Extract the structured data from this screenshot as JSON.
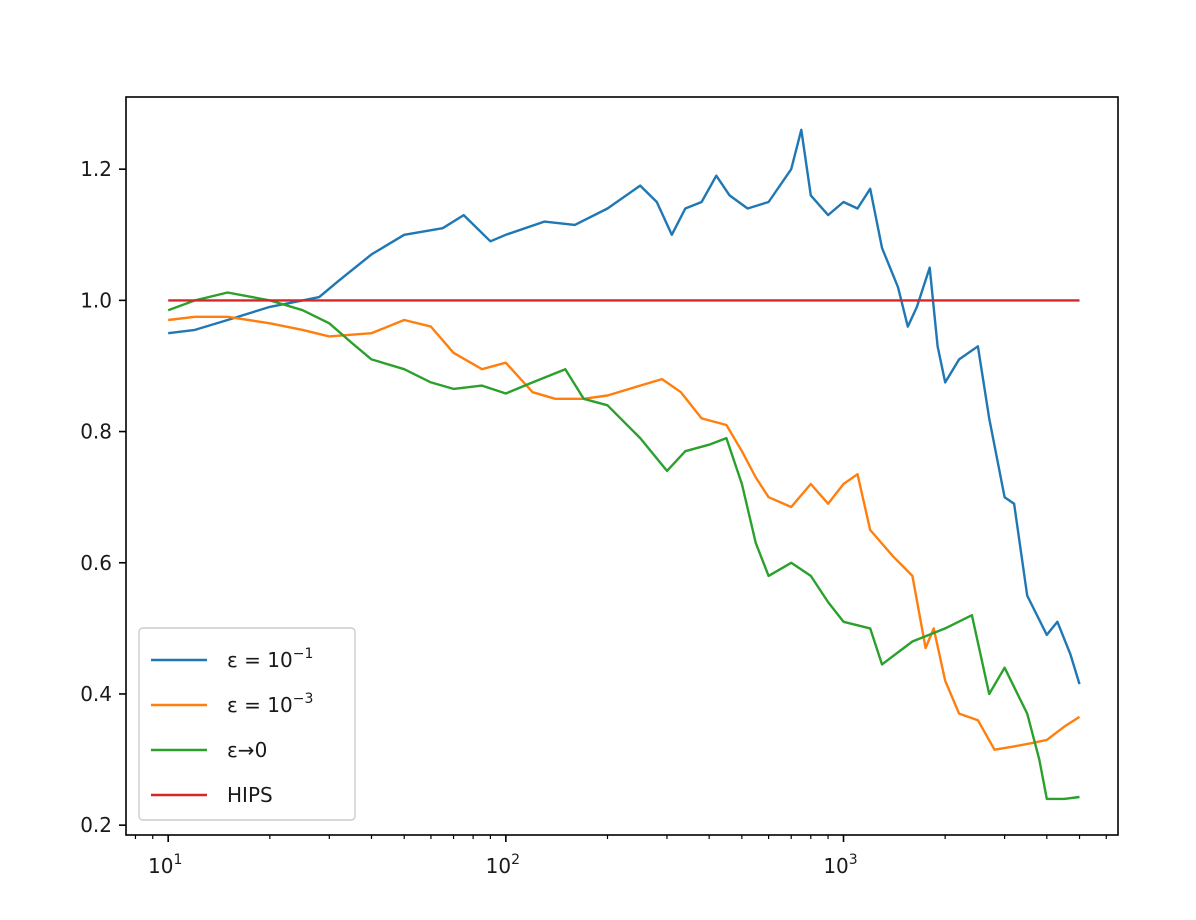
{
  "chart_data": {
    "type": "line",
    "title": "",
    "xlabel": "",
    "ylabel": "",
    "xscale": "log",
    "xlim": [
      7.5,
      6500
    ],
    "ylim": [
      0.185,
      1.31
    ],
    "xticks": [
      {
        "value": 10,
        "label": "10",
        "exp": "1"
      },
      {
        "value": 100,
        "label": "10",
        "exp": "2"
      },
      {
        "value": 1000,
        "label": "10",
        "exp": "3"
      }
    ],
    "yticks": [
      {
        "value": 0.2,
        "label": "0.2"
      },
      {
        "value": 0.4,
        "label": "0.4"
      },
      {
        "value": 0.6,
        "label": "0.6"
      },
      {
        "value": 0.8,
        "label": "0.8"
      },
      {
        "value": 1.0,
        "label": "1.0"
      },
      {
        "value": 1.2,
        "label": "1.2"
      }
    ],
    "grid": false,
    "legend_position": "lower left",
    "series": [
      {
        "name": "ε = 10⁻¹",
        "legend": {
          "base": "ε = 10",
          "sup": "−1"
        },
        "color": "#1f77b4",
        "points": [
          [
            10,
            0.95
          ],
          [
            12,
            0.955
          ],
          [
            15,
            0.97
          ],
          [
            20,
            0.99
          ],
          [
            25,
            1.0
          ],
          [
            28,
            1.005
          ],
          [
            32,
            1.03
          ],
          [
            40,
            1.07
          ],
          [
            50,
            1.1
          ],
          [
            65,
            1.11
          ],
          [
            75,
            1.13
          ],
          [
            90,
            1.09
          ],
          [
            100,
            1.1
          ],
          [
            130,
            1.12
          ],
          [
            160,
            1.115
          ],
          [
            200,
            1.14
          ],
          [
            250,
            1.175
          ],
          [
            280,
            1.15
          ],
          [
            310,
            1.1
          ],
          [
            340,
            1.14
          ],
          [
            380,
            1.15
          ],
          [
            420,
            1.19
          ],
          [
            460,
            1.16
          ],
          [
            520,
            1.14
          ],
          [
            600,
            1.15
          ],
          [
            700,
            1.2
          ],
          [
            750,
            1.26
          ],
          [
            800,
            1.16
          ],
          [
            900,
            1.13
          ],
          [
            1000,
            1.15
          ],
          [
            1100,
            1.14
          ],
          [
            1200,
            1.17
          ],
          [
            1300,
            1.08
          ],
          [
            1450,
            1.02
          ],
          [
            1550,
            0.96
          ],
          [
            1650,
            0.99
          ],
          [
            1800,
            1.05
          ],
          [
            1900,
            0.93
          ],
          [
            2000,
            0.875
          ],
          [
            2200,
            0.91
          ],
          [
            2500,
            0.93
          ],
          [
            2700,
            0.82
          ],
          [
            3000,
            0.7
          ],
          [
            3200,
            0.69
          ],
          [
            3500,
            0.55
          ],
          [
            4000,
            0.49
          ],
          [
            4300,
            0.51
          ],
          [
            4700,
            0.46
          ],
          [
            5000,
            0.415
          ]
        ]
      },
      {
        "name": "ε = 10⁻³",
        "legend": {
          "base": "ε = 10",
          "sup": "−3"
        },
        "color": "#ff7f0e",
        "points": [
          [
            10,
            0.97
          ],
          [
            12,
            0.975
          ],
          [
            15,
            0.975
          ],
          [
            20,
            0.965
          ],
          [
            25,
            0.955
          ],
          [
            30,
            0.945
          ],
          [
            40,
            0.95
          ],
          [
            50,
            0.97
          ],
          [
            60,
            0.96
          ],
          [
            70,
            0.92
          ],
          [
            85,
            0.895
          ],
          [
            100,
            0.905
          ],
          [
            120,
            0.86
          ],
          [
            140,
            0.85
          ],
          [
            170,
            0.85
          ],
          [
            200,
            0.855
          ],
          [
            250,
            0.87
          ],
          [
            290,
            0.88
          ],
          [
            330,
            0.86
          ],
          [
            380,
            0.82
          ],
          [
            450,
            0.81
          ],
          [
            500,
            0.77
          ],
          [
            550,
            0.73
          ],
          [
            600,
            0.7
          ],
          [
            700,
            0.685
          ],
          [
            800,
            0.72
          ],
          [
            900,
            0.69
          ],
          [
            1000,
            0.72
          ],
          [
            1100,
            0.735
          ],
          [
            1200,
            0.65
          ],
          [
            1400,
            0.61
          ],
          [
            1600,
            0.58
          ],
          [
            1750,
            0.47
          ],
          [
            1850,
            0.5
          ],
          [
            2000,
            0.42
          ],
          [
            2200,
            0.37
          ],
          [
            2500,
            0.36
          ],
          [
            2800,
            0.315
          ],
          [
            3200,
            0.32
          ],
          [
            3600,
            0.325
          ],
          [
            4000,
            0.33
          ],
          [
            4500,
            0.35
          ],
          [
            5000,
            0.365
          ]
        ]
      },
      {
        "name": "ε→0",
        "legend": {
          "base": "ε→0",
          "sup": ""
        },
        "color": "#2ca02c",
        "points": [
          [
            10,
            0.985
          ],
          [
            12,
            1.0
          ],
          [
            15,
            1.012
          ],
          [
            20,
            1.0
          ],
          [
            25,
            0.985
          ],
          [
            30,
            0.965
          ],
          [
            35,
            0.935
          ],
          [
            40,
            0.91
          ],
          [
            50,
            0.895
          ],
          [
            60,
            0.875
          ],
          [
            70,
            0.865
          ],
          [
            85,
            0.87
          ],
          [
            100,
            0.858
          ],
          [
            120,
            0.875
          ],
          [
            150,
            0.895
          ],
          [
            170,
            0.85
          ],
          [
            200,
            0.84
          ],
          [
            250,
            0.79
          ],
          [
            300,
            0.74
          ],
          [
            340,
            0.77
          ],
          [
            400,
            0.78
          ],
          [
            450,
            0.79
          ],
          [
            500,
            0.72
          ],
          [
            550,
            0.63
          ],
          [
            600,
            0.58
          ],
          [
            700,
            0.6
          ],
          [
            800,
            0.58
          ],
          [
            900,
            0.54
          ],
          [
            1000,
            0.51
          ],
          [
            1200,
            0.5
          ],
          [
            1300,
            0.445
          ],
          [
            1600,
            0.48
          ],
          [
            2000,
            0.5
          ],
          [
            2400,
            0.52
          ],
          [
            2700,
            0.4
          ],
          [
            3000,
            0.44
          ],
          [
            3500,
            0.37
          ],
          [
            3800,
            0.3
          ],
          [
            4000,
            0.24
          ],
          [
            4500,
            0.24
          ],
          [
            5000,
            0.243
          ]
        ]
      },
      {
        "name": "HIPS",
        "legend": {
          "base": "HIPS",
          "sup": ""
        },
        "color": "#d62728",
        "points": [
          [
            10,
            1.0
          ],
          [
            5000,
            1.0
          ]
        ]
      }
    ]
  }
}
